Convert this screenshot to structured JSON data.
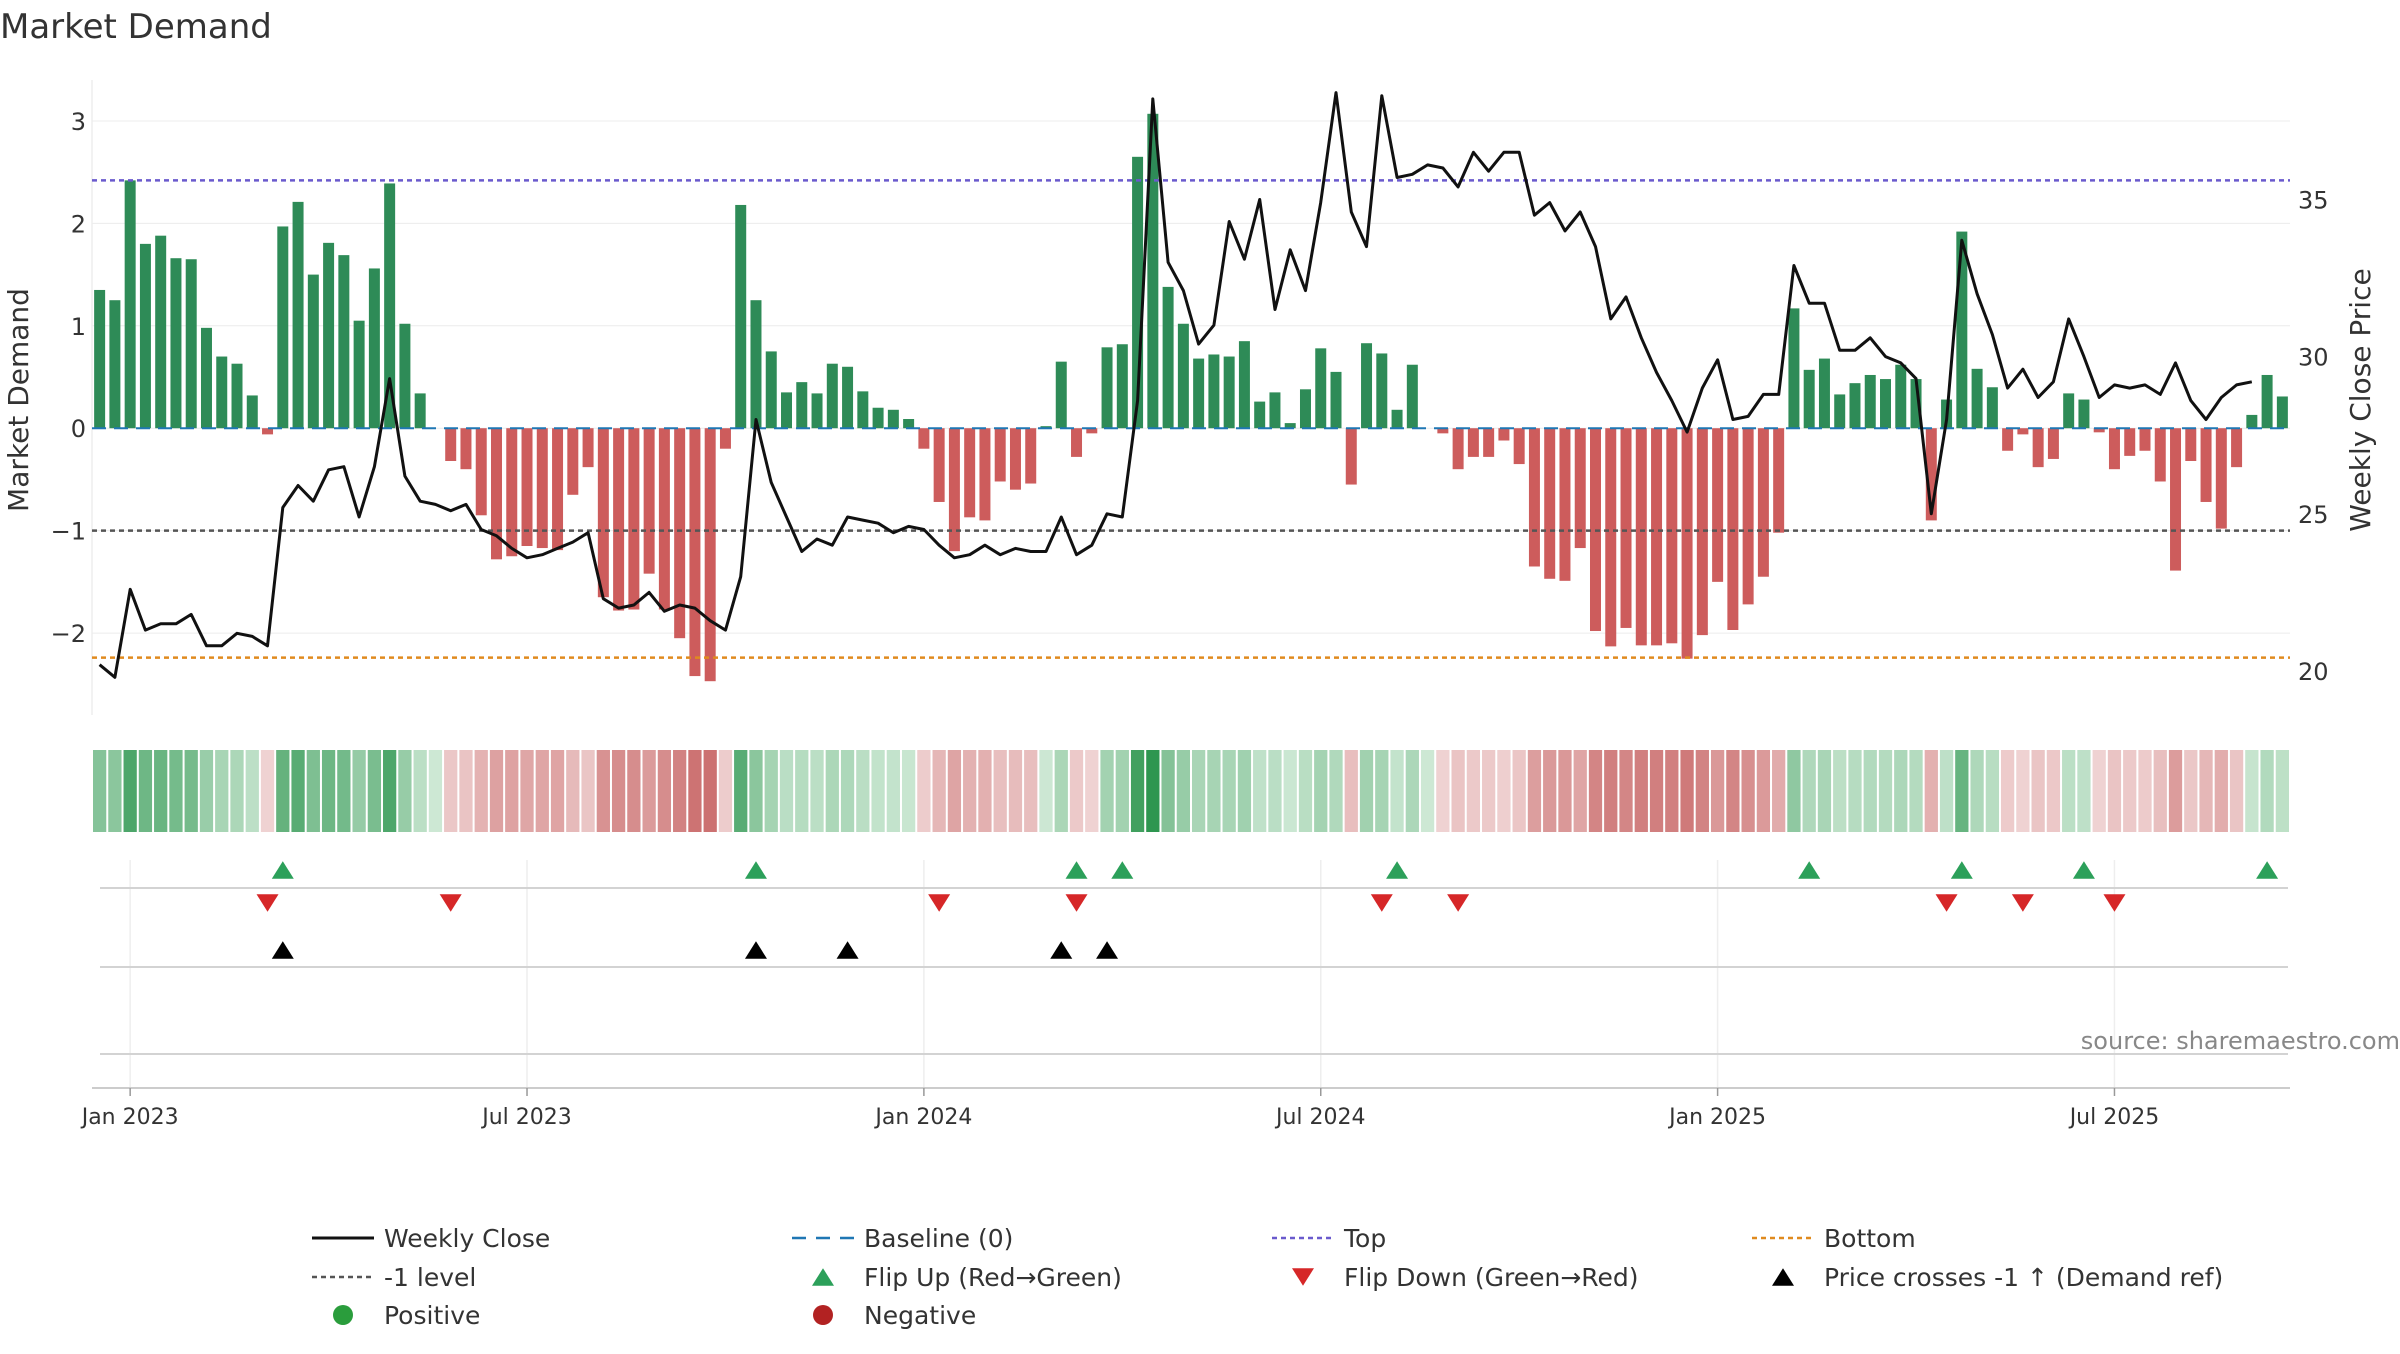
{
  "chart_data": {
    "type": "bar",
    "title": "Market Demand",
    "source": "source: sharemaestro.com",
    "ylabel_left": "Market Demand",
    "ylabel_right": "Weekly Close Price",
    "left_axis": {
      "ylim": [
        -2.8,
        3.4
      ],
      "ticks": [
        3,
        2,
        1,
        0,
        -1,
        -2
      ],
      "tick_labels": [
        "3",
        "2",
        "1",
        "0",
        "−1",
        "−2"
      ]
    },
    "right_axis": {
      "ylim": [
        18.6,
        38.8
      ],
      "ticks": [
        35,
        30,
        25,
        20
      ],
      "tick_labels": [
        "35",
        "30",
        "25",
        "20"
      ]
    },
    "reference_lines": {
      "top": 2.42,
      "bottom": -2.24,
      "minus_one": -1,
      "baseline": 0
    },
    "x_axis": {
      "n_weeks": 144,
      "tick_weeks": [
        2,
        28,
        54,
        80,
        106,
        132
      ],
      "tick_labels": [
        "Jan 2023",
        "Jul 2023",
        "Jan 2024",
        "Jul 2024",
        "Jan 2025",
        "Jul 2025"
      ]
    },
    "series": [
      {
        "name": "Market Demand",
        "values": [
          1.35,
          1.25,
          2.42,
          1.8,
          1.88,
          1.66,
          1.65,
          0.98,
          0.7,
          0.63,
          0.32,
          -0.06,
          1.97,
          2.21,
          1.5,
          1.81,
          1.69,
          1.05,
          1.56,
          2.39,
          1.02,
          0.34,
          0,
          -0.32,
          -0.4,
          -0.85,
          -1.28,
          -1.25,
          -1.15,
          -1.17,
          -1.19,
          -0.65,
          -0.38,
          -1.65,
          -1.78,
          -1.77,
          -1.42,
          -1.77,
          -2.05,
          -2.42,
          -2.47,
          -0.2,
          2.18,
          1.25,
          0.75,
          0.35,
          0.45,
          0.34,
          0.63,
          0.6,
          0.36,
          0.2,
          0.18,
          0.09,
          -0.2,
          -0.72,
          -1.2,
          -0.87,
          -0.9,
          -0.52,
          -0.6,
          -0.54,
          0.02,
          0.65,
          -0.28,
          -0.05,
          0.79,
          0.82,
          2.65,
          3.07,
          1.38,
          1.02,
          0.68,
          0.72,
          0.7,
          0.85,
          0.26,
          0.35,
          0.05,
          0.38,
          0.78,
          0.55,
          -0.55,
          0.83,
          0.73,
          0.18,
          0.62,
          0,
          -0.05,
          -0.4,
          -0.28,
          -0.28,
          -0.12,
          -0.35,
          -1.35,
          -1.47,
          -1.49,
          -1.17,
          -1.98,
          -2.13,
          -1.95,
          -2.12,
          -2.12,
          -2.1,
          -2.25,
          -2.02,
          -1.5,
          -1.97,
          -1.72,
          -1.45,
          -1.02,
          1.17,
          0.57,
          0.68,
          0.33,
          0.44,
          0.52,
          0.48,
          0.62,
          0.48,
          -0.9,
          0.28,
          1.92,
          0.58,
          0.4,
          -0.22,
          -0.06,
          -0.38,
          -0.3,
          0.34,
          0.28,
          -0.04,
          -0.4,
          -0.27,
          -0.22,
          -0.52,
          -1.39,
          -0.32,
          -0.72,
          -0.98,
          -0.38,
          0.13,
          0.52,
          0.31
        ]
      },
      {
        "name": "Weekly Close",
        "axis": "right",
        "values": [
          20.2,
          19.8,
          22.6,
          21.3,
          21.5,
          21.5,
          21.8,
          20.8,
          20.8,
          21.2,
          21.1,
          20.8,
          25.2,
          25.9,
          25.4,
          26.4,
          26.5,
          24.9,
          26.5,
          29.3,
          26.2,
          25.4,
          25.3,
          25.1,
          25.3,
          24.5,
          24.3,
          23.9,
          23.6,
          23.7,
          23.9,
          24.1,
          24.4,
          22.3,
          22.0,
          22.1,
          22.5,
          21.9,
          22.1,
          22.0,
          21.6,
          21.3,
          23.0,
          28.0,
          26.0,
          24.9,
          23.8,
          24.2,
          24.0,
          24.9,
          24.8,
          24.7,
          24.4,
          24.6,
          24.5,
          24.0,
          23.6,
          23.7,
          24.0,
          23.7,
          23.9,
          23.8,
          23.8,
          24.9,
          23.7,
          24.0,
          25.0,
          24.9,
          28.6,
          38.2,
          33.0,
          32.1,
          30.4,
          31.0,
          34.3,
          33.1,
          35.0,
          31.5,
          33.4,
          32.1,
          34.9,
          38.4,
          34.6,
          33.5,
          38.3,
          35.7,
          35.8,
          36.1,
          36.0,
          35.4,
          36.5,
          35.9,
          36.5,
          36.5,
          34.5,
          34.9,
          34.0,
          34.6,
          33.5,
          31.2,
          31.9,
          30.6,
          29.5,
          28.6,
          27.6,
          29.0,
          29.9,
          28.0,
          28.1,
          28.8,
          28.8,
          32.9,
          31.7,
          31.7,
          30.2,
          30.2,
          30.6,
          30.0,
          29.8,
          29.3,
          25.0,
          28.0,
          33.7,
          32.0,
          30.7,
          29.0,
          29.6,
          28.7,
          29.2,
          31.2,
          30.0,
          28.7,
          29.1,
          29.0,
          29.1,
          28.8,
          29.8,
          28.6,
          28.0,
          28.7,
          29.1,
          29.2
        ]
      }
    ],
    "heat_strip": {
      "label": "Demand heat strip (colour by demand value)"
    },
    "flip_up_weeks": [
      12,
      43,
      64,
      67,
      85,
      112,
      122,
      130,
      142
    ],
    "flip_down_weeks": [
      11,
      23,
      55,
      64,
      84,
      89,
      121,
      126,
      132
    ],
    "price_cross_weeks": [
      12,
      43,
      49,
      63,
      66
    ],
    "legend": [
      {
        "label": "Weekly Close",
        "marker": "line-solid-black"
      },
      {
        "label": "Baseline (0)",
        "marker": "line-dash-blue"
      },
      {
        "label": "Top",
        "marker": "line-dot-purple"
      },
      {
        "label": "Bottom",
        "marker": "line-dot-orange"
      },
      {
        "label": "-1 level",
        "marker": "line-dot-grey"
      },
      {
        "label": "Flip Up (Red→Green)",
        "marker": "triangle-up-green"
      },
      {
        "label": "Flip Down (Green→Red)",
        "marker": "triangle-down-red"
      },
      {
        "label": "Price crosses -1 ↑ (Demand ref)",
        "marker": "triangle-up-black"
      },
      {
        "label": "Positive",
        "marker": "dot-green"
      },
      {
        "label": "Negative",
        "marker": "dot-red"
      }
    ],
    "colors": {
      "positive": "#2e8b57",
      "negative": "#cd5c5c",
      "price": "#111111",
      "top": "#6a5acd",
      "bottom": "#e08a1e",
      "minus_one": "#555555",
      "baseline": "#1f77b4",
      "flip_up": "#2ca05a",
      "flip_down": "#d62728",
      "cross": "#000000",
      "legend_positive": "#2a9d3c",
      "legend_negative": "#b22222"
    }
  }
}
